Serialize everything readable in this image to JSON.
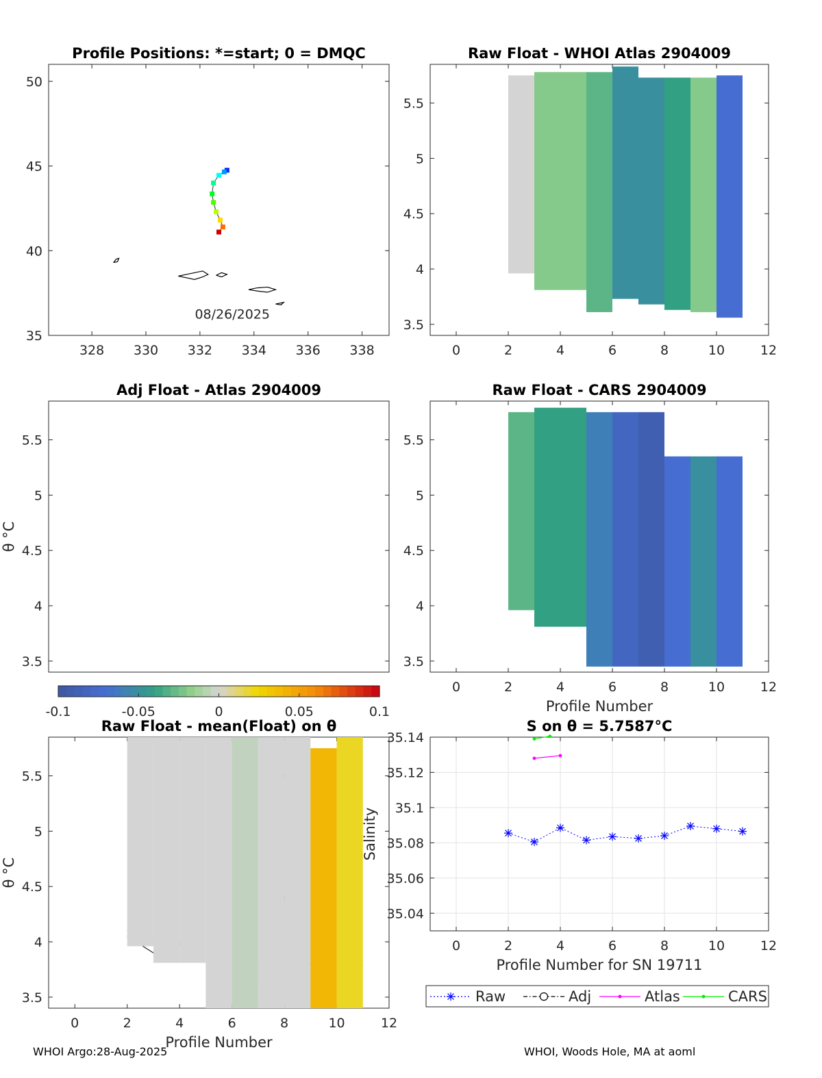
{
  "footer": {
    "left": "WHOI Argo:28-Aug-2025",
    "right": "WHOI, Woods Hole, MA at aoml"
  },
  "colors": {
    "raw": "#0000ff",
    "adj": "#000000",
    "atlas": "#ff00ff",
    "cars": "#00ee00"
  },
  "chart_data": [
    {
      "id": "map",
      "type": "scatter",
      "title": "Profile Positions: *=start; 0 = DMQC",
      "xlim": [
        326.4,
        339
      ],
      "ylim": [
        35,
        51
      ],
      "xticks": [
        328,
        330,
        332,
        334,
        336,
        338
      ],
      "yticks": [
        35,
        40,
        45,
        50
      ],
      "date_label": "08/26/2025",
      "track": {
        "lon": [
          333.0,
          332.9,
          332.7,
          332.5,
          332.45,
          332.5,
          332.6,
          332.75,
          332.85,
          332.7
        ],
        "lat": [
          44.75,
          44.65,
          44.45,
          44.0,
          43.35,
          42.85,
          42.3,
          41.8,
          41.4,
          41.1
        ]
      },
      "contours": [
        {
          "lon": [
            328.8,
            328.9,
            329.0,
            328.95,
            328.8
          ],
          "lat": [
            39.3,
            39.5,
            39.55,
            39.35,
            39.3
          ]
        },
        {
          "lon": [
            331.2,
            331.5,
            331.8,
            332.1,
            332.3,
            332.1,
            331.8,
            331.5,
            331.2
          ],
          "lat": [
            38.5,
            38.4,
            38.3,
            38.45,
            38.6,
            38.8,
            38.7,
            38.6,
            38.5
          ]
        },
        {
          "lon": [
            332.6,
            332.8,
            333.0,
            332.8,
            332.6
          ],
          "lat": [
            38.55,
            38.45,
            38.6,
            38.7,
            38.55
          ]
        },
        {
          "lon": [
            333.8,
            334.2,
            334.5,
            334.8,
            334.5,
            334.1,
            333.8
          ],
          "lat": [
            37.7,
            37.6,
            37.55,
            37.7,
            37.85,
            37.8,
            37.7
          ]
        },
        {
          "lon": [
            334.8,
            335.0,
            335.1,
            334.8
          ],
          "lat": [
            36.85,
            36.8,
            36.95,
            36.85
          ]
        }
      ]
    },
    {
      "id": "atlas",
      "type": "heatmap",
      "title": "Raw Float - WHOI Atlas  2904009",
      "xlim": [
        -1,
        12
      ],
      "ylim": [
        3.4,
        5.85
      ],
      "xticks": [
        0,
        2,
        4,
        6,
        8,
        10,
        12
      ],
      "yticks": [
        3.5,
        4,
        4.5,
        5,
        5.5
      ],
      "columns": [
        {
          "x": 2,
          "top": 5.75,
          "bottom": 3.96,
          "vals": [
            0.0
          ]
        },
        {
          "x": 3,
          "top": 5.78,
          "bottom": 3.81,
          "vals": [
            -0.02
          ]
        },
        {
          "x": 4,
          "top": 5.78,
          "bottom": 3.81,
          "vals": [
            -0.02
          ]
        },
        {
          "x": 5,
          "top": 5.78,
          "bottom": 3.61,
          "vals": [
            -0.03
          ]
        },
        {
          "x": 6,
          "top": 5.83,
          "bottom": 3.73,
          "vals": [
            -0.05
          ]
        },
        {
          "x": 7,
          "top": 5.73,
          "bottom": 3.68,
          "vals": [
            -0.05
          ]
        },
        {
          "x": 8,
          "top": 5.73,
          "bottom": 3.63,
          "vals": [
            -0.04
          ]
        },
        {
          "x": 9,
          "top": 5.73,
          "bottom": 3.61,
          "vals": [
            -0.02
          ]
        },
        {
          "x": 10,
          "top": 5.75,
          "bottom": 3.56,
          "vals": [
            -0.07
          ]
        }
      ]
    },
    {
      "id": "adj",
      "type": "heatmap",
      "title": "Adj Float - Atlas  2904009",
      "ylabel": "θ °C",
      "ylim": [
        3.4,
        5.85
      ],
      "yticks": [
        3.5,
        4,
        4.5,
        5,
        5.5
      ],
      "colorbar": {
        "min": -0.1,
        "max": 0.1,
        "ticks": [
          -0.1,
          -0.05,
          0,
          0.05,
          0.1
        ],
        "tick_labels": [
          "-0.1",
          "-0.05",
          "0",
          "0.05",
          "0.1"
        ]
      }
    },
    {
      "id": "cars",
      "type": "heatmap",
      "title": "Raw Float - CARS  2904009",
      "xlabel": "Profile Number",
      "xlim": [
        -1,
        12
      ],
      "ylim": [
        3.4,
        5.85
      ],
      "xticks": [
        0,
        2,
        4,
        6,
        8,
        10,
        12
      ],
      "yticks": [
        3.5,
        4,
        4.5,
        5,
        5.5
      ],
      "columns": [
        {
          "x": 2,
          "top": 5.75,
          "bottom": 3.96,
          "vals": [
            -0.03
          ]
        },
        {
          "x": 3,
          "top": 5.79,
          "bottom": 3.81,
          "vals": [
            -0.04
          ]
        },
        {
          "x": 4,
          "top": 5.79,
          "bottom": 3.81,
          "vals": [
            -0.04
          ]
        },
        {
          "x": 5,
          "top": 5.75,
          "bottom": 3.45,
          "vals": [
            -0.06
          ]
        },
        {
          "x": 6,
          "top": 5.75,
          "bottom": 3.45,
          "vals": [
            -0.08
          ]
        },
        {
          "x": 7,
          "top": 5.75,
          "bottom": 3.45,
          "vals": [
            -0.09
          ]
        },
        {
          "x": 8,
          "top": 5.35,
          "bottom": 3.45,
          "vals": [
            -0.07
          ]
        },
        {
          "x": 9,
          "top": 5.35,
          "bottom": 3.45,
          "vals": [
            -0.05
          ]
        },
        {
          "x": 10,
          "top": 5.35,
          "bottom": 3.45,
          "vals": [
            -0.07
          ]
        }
      ]
    },
    {
      "id": "mean",
      "type": "heatmap",
      "title": "Raw Float - mean(Float) on θ",
      "ylabel": "θ °C",
      "xlabel": "Profile Number",
      "xlim": [
        -1,
        12
      ],
      "ylim": [
        3.4,
        5.85
      ],
      "xticks": [
        0,
        2,
        4,
        6,
        8,
        10,
        12
      ],
      "yticks": [
        3.5,
        4,
        4.5,
        5,
        5.5
      ],
      "columns": [
        {
          "x": 2,
          "top": 5.85,
          "bottom": 3.96,
          "vals": [
            0.0
          ]
        },
        {
          "x": 3,
          "top": 5.85,
          "bottom": 3.81,
          "vals": [
            0.0
          ]
        },
        {
          "x": 4,
          "top": 5.85,
          "bottom": 3.81,
          "vals": [
            0.0
          ]
        },
        {
          "x": 5,
          "top": 5.85,
          "bottom": 3.4,
          "vals": [
            0.0
          ]
        },
        {
          "x": 6,
          "top": 5.85,
          "bottom": 3.4,
          "vals": [
            -0.005
          ]
        },
        {
          "x": 7,
          "top": 5.85,
          "bottom": 3.4,
          "vals": [
            0.0
          ]
        },
        {
          "x": 8,
          "top": 5.85,
          "bottom": 3.4,
          "vals": [
            0.0
          ]
        },
        {
          "x": 9,
          "top": 5.75,
          "bottom": 3.4,
          "vals": [
            0.04
          ]
        },
        {
          "x": 10,
          "top": 5.85,
          "bottom": 3.4,
          "vals": [
            0.02
          ]
        }
      ]
    },
    {
      "id": "salinity",
      "type": "line",
      "title": "S on θ = 5.7587°C",
      "ylabel": "Salinity",
      "xlabel": "Profile Number for SN 19711",
      "xlim": [
        -1,
        12
      ],
      "ylim": [
        35.03,
        35.14
      ],
      "xticks": [
        0,
        2,
        4,
        6,
        8,
        10,
        12
      ],
      "yticks": [
        35.04,
        35.06,
        35.08,
        35.1,
        35.12,
        35.14
      ],
      "series": [
        {
          "name": "Raw",
          "x": [
            2,
            3,
            4,
            5,
            6,
            7,
            8,
            9,
            10,
            11
          ],
          "y": [
            35.0855,
            35.0805,
            35.0885,
            35.0815,
            35.0835,
            35.0825,
            35.084,
            35.0895,
            35.088,
            35.0865
          ]
        },
        {
          "name": "Adj",
          "x": [],
          "y": []
        },
        {
          "name": "Atlas",
          "x": [
            3,
            4
          ],
          "y": [
            35.128,
            35.1295
          ]
        },
        {
          "name": "CARS",
          "x": [
            3,
            3.6
          ],
          "y": [
            35.139,
            35.1405
          ]
        }
      ]
    }
  ]
}
